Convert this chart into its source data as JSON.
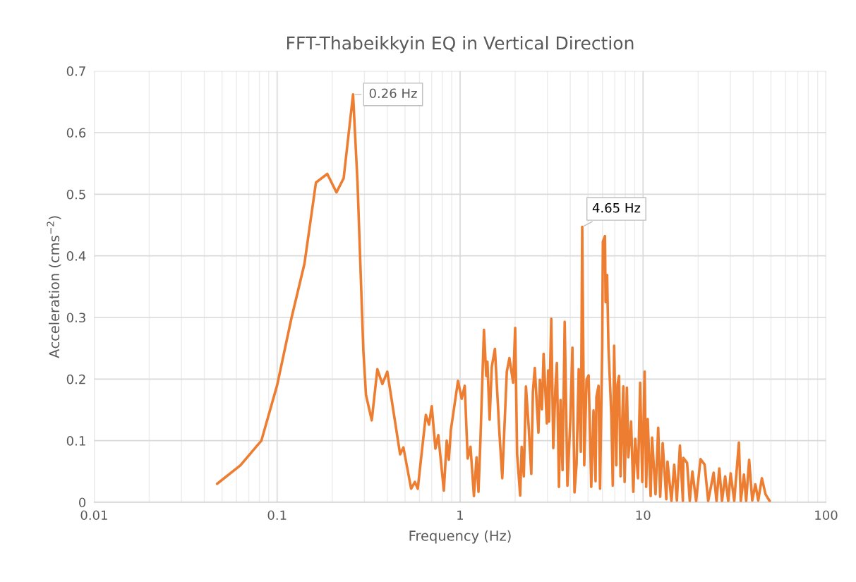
{
  "chart_data": {
    "type": "line",
    "title": "FFT-Thabeikkyin EQ in Vertical Direction",
    "xlabel": "Frequency (Hz)",
    "ylabel": "Acceleration (cms$^{−2}$)",
    "log": "x",
    "xlim": [
      0.01,
      100
    ],
    "xticks": [
      0.01,
      0.1,
      1,
      10,
      100
    ],
    "ylim": [
      0,
      0.7
    ],
    "yticks": [
      0,
      0.1,
      0.2,
      0.3,
      0.4,
      0.5,
      0.6,
      0.7
    ],
    "grid": true,
    "legend": false,
    "marker": "none",
    "line_style": "solid",
    "annotations": [
      {
        "text": "0.26 Hz",
        "x": 0.26,
        "y": 0.662
      },
      {
        "text": "4.65 Hz",
        "x": 4.65,
        "y": 0.447
      }
    ],
    "series": [
      {
        "color": "#ed7d31",
        "x": [
          0.047,
          0.063,
          0.082,
          0.1,
          0.12,
          0.141,
          0.163,
          0.188,
          0.211,
          0.231,
          0.26,
          0.275,
          0.296,
          0.306,
          0.329,
          0.353,
          0.376,
          0.4,
          0.47,
          0.49,
          0.54,
          0.566,
          0.587,
          0.65,
          0.676,
          0.7,
          0.733,
          0.76,
          0.815,
          0.845,
          0.868,
          0.89,
          0.974,
          1.02,
          1.06,
          1.1,
          1.14,
          1.19,
          1.23,
          1.26,
          1.29,
          1.35,
          1.39,
          1.41,
          1.45,
          1.49,
          1.55,
          1.64,
          1.7,
          1.8,
          1.86,
          1.95,
          2.0,
          2.05,
          2.13,
          2.17,
          2.23,
          2.29,
          2.37,
          2.45,
          2.5,
          2.56,
          2.68,
          2.73,
          2.8,
          2.86,
          2.98,
          3.03,
          3.06,
          3.15,
          3.23,
          3.32,
          3.38,
          3.47,
          3.54,
          3.63,
          3.73,
          3.86,
          4.0,
          4.11,
          4.22,
          4.33,
          4.45,
          4.57,
          4.65,
          4.77,
          4.91,
          5.04,
          5.21,
          5.36,
          5.5,
          5.56,
          5.71,
          5.82,
          5.98,
          6.03,
          6.19,
          6.24,
          6.36,
          6.47,
          6.71,
          6.83,
          6.95,
          7.14,
          7.25,
          7.39,
          7.53,
          7.8,
          7.93,
          8.16,
          8.31,
          8.6,
          8.84,
          9.06,
          9.38,
          9.64,
          9.9,
          10.2,
          10.4,
          10.6,
          11.0,
          11.2,
          11.7,
          12.1,
          12.4,
          12.8,
          13.4,
          13.6,
          14.3,
          14.8,
          15.3,
          15.9,
          16.5,
          16.6,
          17.4,
          18.0,
          18.6,
          19.5,
          20.6,
          21.7,
          22.7,
          24.3,
          25.2,
          26.1,
          27.0,
          28.1,
          29.2,
          30.1,
          31.5,
          33.4,
          34.2,
          35.6,
          36.6,
          38.0,
          39.5,
          41.1,
          42.6,
          44.6,
          46.7,
          49.2
        ],
        "values": [
          0.03,
          0.06,
          0.1,
          0.19,
          0.3,
          0.387,
          0.519,
          0.533,
          0.503,
          0.526,
          0.662,
          0.519,
          0.246,
          0.174,
          0.133,
          0.216,
          0.192,
          0.212,
          0.078,
          0.089,
          0.022,
          0.033,
          0.022,
          0.142,
          0.126,
          0.156,
          0.087,
          0.109,
          0.019,
          0.1,
          0.069,
          0.117,
          0.197,
          0.168,
          0.189,
          0.071,
          0.09,
          0.01,
          0.073,
          0.017,
          0.096,
          0.28,
          0.205,
          0.228,
          0.134,
          0.22,
          0.249,
          0.113,
          0.039,
          0.212,
          0.234,
          0.194,
          0.283,
          0.077,
          0.011,
          0.09,
          0.042,
          0.188,
          0.123,
          0.046,
          0.18,
          0.218,
          0.113,
          0.199,
          0.151,
          0.241,
          0.128,
          0.214,
          0.131,
          0.298,
          0.088,
          0.188,
          0.226,
          0.025,
          0.166,
          0.052,
          0.293,
          0.027,
          0.131,
          0.251,
          0.016,
          0.062,
          0.216,
          0.082,
          0.447,
          0.06,
          0.199,
          0.206,
          0.025,
          0.149,
          0.034,
          0.171,
          0.189,
          0.022,
          0.252,
          0.423,
          0.432,
          0.325,
          0.369,
          0.251,
          0.14,
          0.027,
          0.254,
          0.06,
          0.191,
          0.205,
          0.042,
          0.188,
          0.033,
          0.186,
          0.073,
          0.131,
          0.017,
          0.103,
          0.039,
          0.194,
          0.033,
          0.212,
          0.025,
          0.135,
          0.01,
          0.105,
          0.013,
          0.121,
          0.009,
          0.096,
          0.005,
          0.066,
          0.002,
          0.061,
          0.003,
          0.092,
          0.002,
          0.072,
          0.064,
          0.002,
          0.05,
          0.002,
          0.07,
          0.061,
          0.002,
          0.048,
          0.002,
          0.055,
          0.002,
          0.042,
          0.002,
          0.047,
          0.002,
          0.097,
          0.002,
          0.045,
          0.002,
          0.069,
          0.003,
          0.029,
          0.003,
          0.039,
          0.013,
          0.002
        ]
      }
    ]
  }
}
